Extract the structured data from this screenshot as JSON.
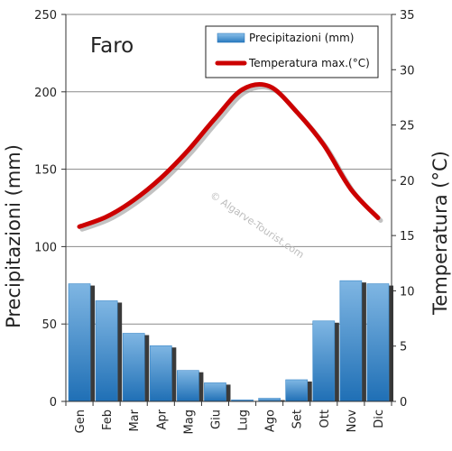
{
  "chart_data": {
    "type": "bar",
    "title": "Faro",
    "watermark": "© Algarve-Tourist.com",
    "categories": [
      "Gen",
      "Feb",
      "Mar",
      "Apr",
      "Mag",
      "Giu",
      "Lug",
      "Ago",
      "Set",
      "Ott",
      "Nov",
      "Dic"
    ],
    "series": [
      {
        "name": "Precipitazioni (mm)",
        "type": "bar",
        "axis": "left",
        "color": "#3a87c8",
        "values": [
          76,
          65,
          44,
          36,
          20,
          12,
          1,
          2,
          14,
          52,
          78,
          76
        ]
      },
      {
        "name": "Temperatura max.(°C)",
        "type": "line",
        "axis": "right",
        "color": "#cc0000",
        "values": [
          15.8,
          16.7,
          18.2,
          20.2,
          22.7,
          25.6,
          28.2,
          28.5,
          26.2,
          23.2,
          19.2,
          16.6
        ]
      }
    ],
    "ylabel": "Precipitazioni (mm)",
    "ylim": [
      0,
      250
    ],
    "yticks": [
      0,
      50,
      100,
      150,
      200,
      250
    ],
    "y2label": "Temperatura (°C)",
    "y2lim": [
      0,
      35
    ],
    "y2ticks": [
      0,
      5,
      10,
      15,
      20,
      25,
      30,
      35
    ],
    "grid": true,
    "legend": "top-right"
  }
}
